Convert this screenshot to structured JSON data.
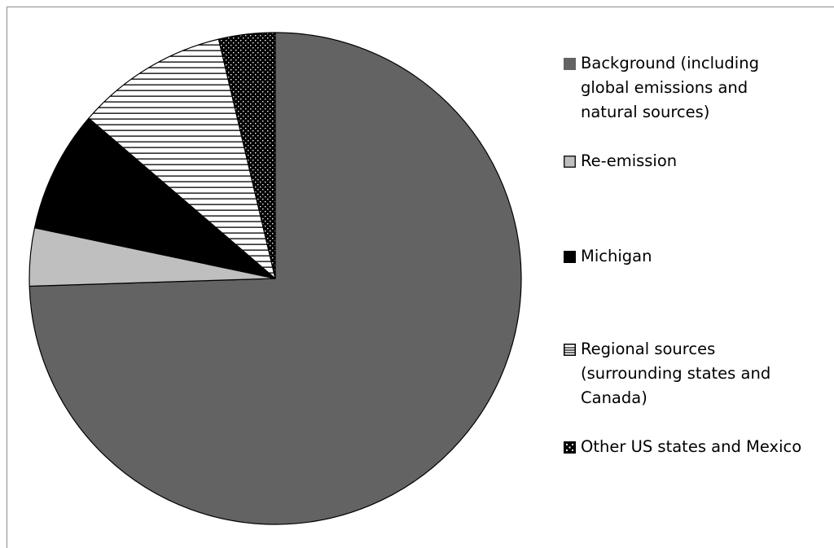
{
  "chart_data": {
    "type": "pie",
    "start_angle_deg": 0,
    "direction": "clockwise",
    "slices": [
      {
        "label": "Background (including global emissions and natural sources)",
        "value": 74.5,
        "color": "#636363",
        "pattern": "solid"
      },
      {
        "label": "Re-emission",
        "value": 3.8,
        "color": "#bfbfbf",
        "pattern": "solid"
      },
      {
        "label": "Michigan",
        "value": 8.0,
        "color": "#000000",
        "pattern": "solid"
      },
      {
        "label": "Regional sources (surrounding states and Canada)",
        "value": 10.0,
        "color": "#ffffff",
        "pattern": "horizontal-stripes"
      },
      {
        "label": "Other US states and Mexico",
        "value": 3.7,
        "color": "#000000",
        "pattern": "dots"
      }
    ],
    "legend_position": "right"
  },
  "legend": {
    "items": [
      {
        "label": "Background (including\nglobal emissions and\nnatural sources)",
        "swatch": "solid-dark-gray"
      },
      {
        "label": "Re-emission",
        "swatch": "solid-light-gray"
      },
      {
        "label": "Michigan",
        "swatch": "solid-black"
      },
      {
        "label": "Regional sources\n(surrounding states and\nCanada)",
        "swatch": "horizontal-stripes"
      },
      {
        "label": "Other US states and Mexico",
        "swatch": "dots"
      }
    ]
  }
}
